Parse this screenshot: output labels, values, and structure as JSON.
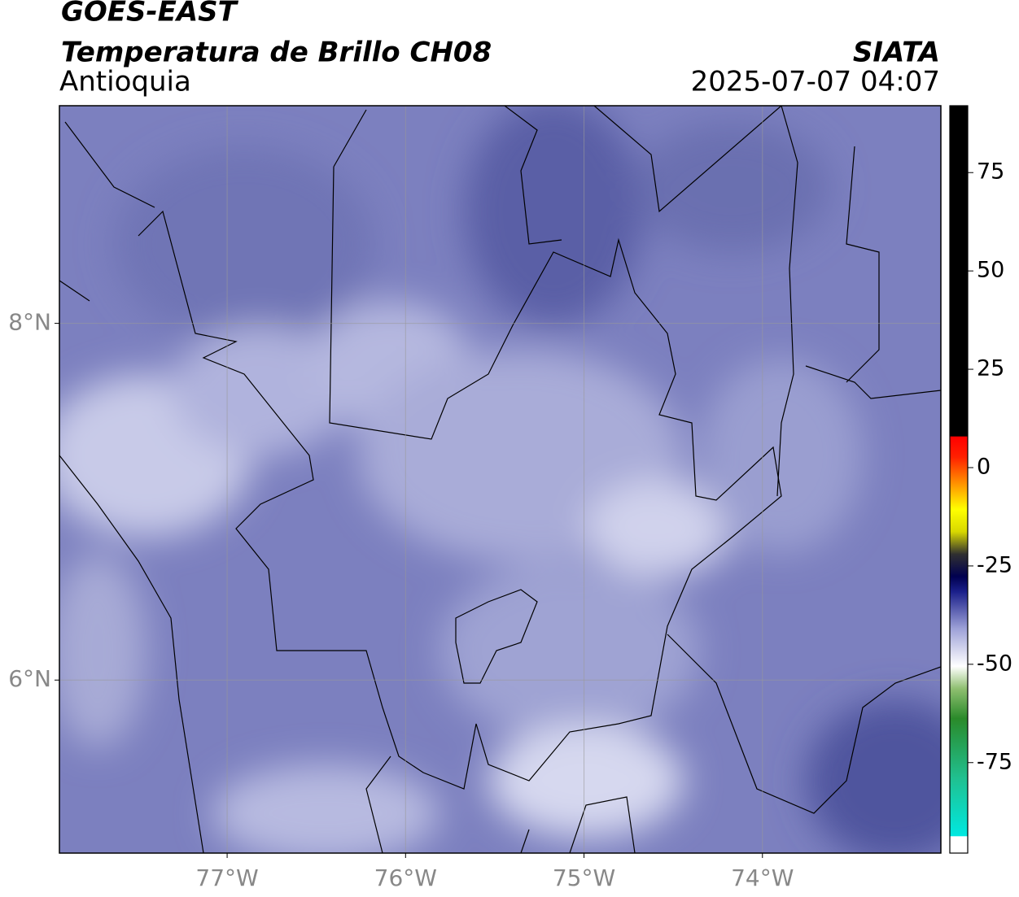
{
  "header": {
    "title": "GOES-EAST",
    "subtitle": "Temperatura de Brillo CH08",
    "region": "Antioquia",
    "source": "SIATA",
    "datetime": "2025-07-07 04:07"
  },
  "map": {
    "xlim": [
      -77.94,
      -73
    ],
    "ylim": [
      5.03,
      9.22
    ],
    "xticks": [
      {
        "value": -77,
        "label": "77°W"
      },
      {
        "value": -76,
        "label": "76°W"
      },
      {
        "value": -75,
        "label": "75°W"
      },
      {
        "value": -74,
        "label": "74°W"
      }
    ],
    "yticks": [
      {
        "value": 6,
        "label": "6°N"
      },
      {
        "value": 8,
        "label": "8°N"
      }
    ]
  },
  "colorbar": {
    "lim": [
      -98,
      92
    ],
    "ticks": [
      -75,
      -50,
      -25,
      0,
      25,
      50,
      75
    ]
  }
}
